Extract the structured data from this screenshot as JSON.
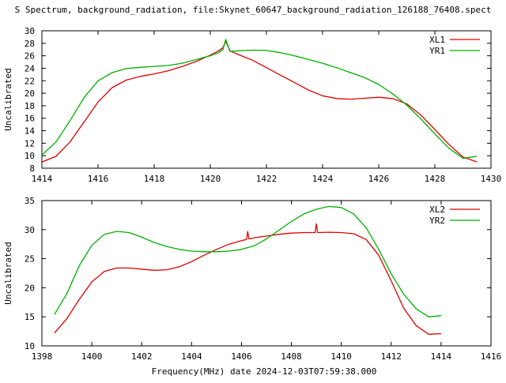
{
  "page": {
    "title": "S Spectrum, background_radiation, file:Skynet_60647_background_radiation_126188_76408.spect",
    "xlabel_text": "Frequency(MHz) date 2024-12-03T07:59:38.000"
  },
  "chart_data": [
    {
      "type": "line",
      "ylabel": "Uncalibrated",
      "xlim": [
        1414,
        1430
      ],
      "ylim": [
        8,
        30
      ],
      "xticks": [
        1414,
        1416,
        1418,
        1420,
        1422,
        1424,
        1426,
        1428,
        1430
      ],
      "yticks": [
        8,
        10,
        12,
        14,
        16,
        18,
        20,
        22,
        24,
        26,
        28,
        30
      ],
      "grid": false,
      "legend": "top-right",
      "series": [
        {
          "name": "XL1",
          "color": "#e00000",
          "x": [
            1414.0,
            1414.5,
            1415.0,
            1415.5,
            1416.0,
            1416.5,
            1417.0,
            1417.5,
            1418.0,
            1418.5,
            1419.0,
            1419.5,
            1420.0,
            1420.3,
            1420.45,
            1420.55,
            1420.7,
            1421.0,
            1421.5,
            1422.0,
            1422.5,
            1423.0,
            1423.5,
            1424.0,
            1424.5,
            1425.0,
            1425.5,
            1426.0,
            1426.5,
            1427.0,
            1427.5,
            1428.0,
            1428.5,
            1429.0,
            1429.5
          ],
          "y": [
            9.0,
            9.9,
            12.2,
            15.4,
            18.6,
            20.9,
            22.1,
            22.7,
            23.1,
            23.6,
            24.3,
            25.1,
            26.1,
            26.8,
            27.3,
            28.3,
            26.8,
            26.2,
            25.3,
            24.1,
            22.9,
            21.7,
            20.5,
            19.6,
            19.15,
            19.05,
            19.2,
            19.35,
            19.15,
            18.3,
            16.5,
            14.2,
            11.8,
            9.8,
            9.0
          ]
        },
        {
          "name": "YR1",
          "color": "#00b000",
          "x": [
            1414.0,
            1414.5,
            1415.0,
            1415.5,
            1416.0,
            1416.5,
            1417.0,
            1417.5,
            1418.0,
            1418.5,
            1419.0,
            1419.5,
            1420.0,
            1420.3,
            1420.45,
            1420.55,
            1420.7,
            1421.0,
            1421.5,
            1422.0,
            1422.5,
            1423.0,
            1423.5,
            1424.0,
            1424.5,
            1425.0,
            1425.5,
            1426.0,
            1426.5,
            1427.0,
            1427.5,
            1428.0,
            1428.5,
            1429.0,
            1429.5
          ],
          "y": [
            10.1,
            12.2,
            15.6,
            19.3,
            22.0,
            23.3,
            23.95,
            24.15,
            24.3,
            24.45,
            24.8,
            25.4,
            26.0,
            26.5,
            27.0,
            28.6,
            26.7,
            26.8,
            26.9,
            26.85,
            26.5,
            26.0,
            25.4,
            24.8,
            24.1,
            23.3,
            22.5,
            21.4,
            19.9,
            18.1,
            15.9,
            13.5,
            11.2,
            9.6,
            9.9
          ]
        }
      ]
    },
    {
      "type": "line",
      "ylabel": "Uncalibrated",
      "xlim": [
        1398,
        1416
      ],
      "ylim": [
        10,
        35
      ],
      "xticks": [
        1398,
        1400,
        1402,
        1404,
        1406,
        1408,
        1410,
        1412,
        1414,
        1416
      ],
      "yticks": [
        10,
        15,
        20,
        25,
        30,
        35
      ],
      "grid": false,
      "legend": "top-right",
      "series": [
        {
          "name": "XL2",
          "color": "#e00000",
          "x": [
            1398.5,
            1399.0,
            1399.5,
            1400.0,
            1400.5,
            1401.0,
            1401.5,
            1402.0,
            1402.5,
            1403.0,
            1403.5,
            1404.0,
            1404.5,
            1405.0,
            1405.5,
            1406.0,
            1406.2,
            1406.25,
            1406.3,
            1406.5,
            1407.0,
            1407.5,
            1408.0,
            1408.5,
            1408.95,
            1409.0,
            1409.05,
            1409.5,
            1410.0,
            1410.5,
            1411.0,
            1411.5,
            1412.0,
            1412.5,
            1413.0,
            1413.5,
            1414.0
          ],
          "y": [
            12.2,
            14.7,
            18.0,
            21.0,
            22.8,
            23.4,
            23.4,
            23.2,
            23.0,
            23.1,
            23.6,
            24.5,
            25.6,
            26.6,
            27.5,
            28.1,
            28.3,
            29.7,
            28.4,
            28.6,
            28.9,
            29.2,
            29.4,
            29.5,
            29.5,
            31.0,
            29.5,
            29.55,
            29.5,
            29.3,
            28.3,
            25.6,
            21.2,
            16.5,
            13.5,
            12.0,
            12.1
          ]
        },
        {
          "name": "YR2",
          "color": "#00b000",
          "x": [
            1398.5,
            1399.0,
            1399.5,
            1400.0,
            1400.5,
            1401.0,
            1401.5,
            1402.0,
            1402.5,
            1403.0,
            1403.5,
            1404.0,
            1404.5,
            1405.0,
            1405.5,
            1406.0,
            1406.5,
            1407.0,
            1407.5,
            1408.0,
            1408.5,
            1409.0,
            1409.5,
            1410.0,
            1410.5,
            1411.0,
            1411.5,
            1412.0,
            1412.5,
            1413.0,
            1413.5,
            1414.0
          ],
          "y": [
            15.4,
            19.0,
            23.8,
            27.3,
            29.2,
            29.7,
            29.5,
            28.7,
            27.8,
            27.1,
            26.6,
            26.3,
            26.2,
            26.2,
            26.3,
            26.6,
            27.2,
            28.4,
            29.9,
            31.4,
            32.7,
            33.5,
            34.0,
            33.8,
            32.7,
            30.3,
            26.6,
            22.4,
            18.9,
            16.4,
            15.0,
            15.2
          ]
        }
      ]
    }
  ]
}
